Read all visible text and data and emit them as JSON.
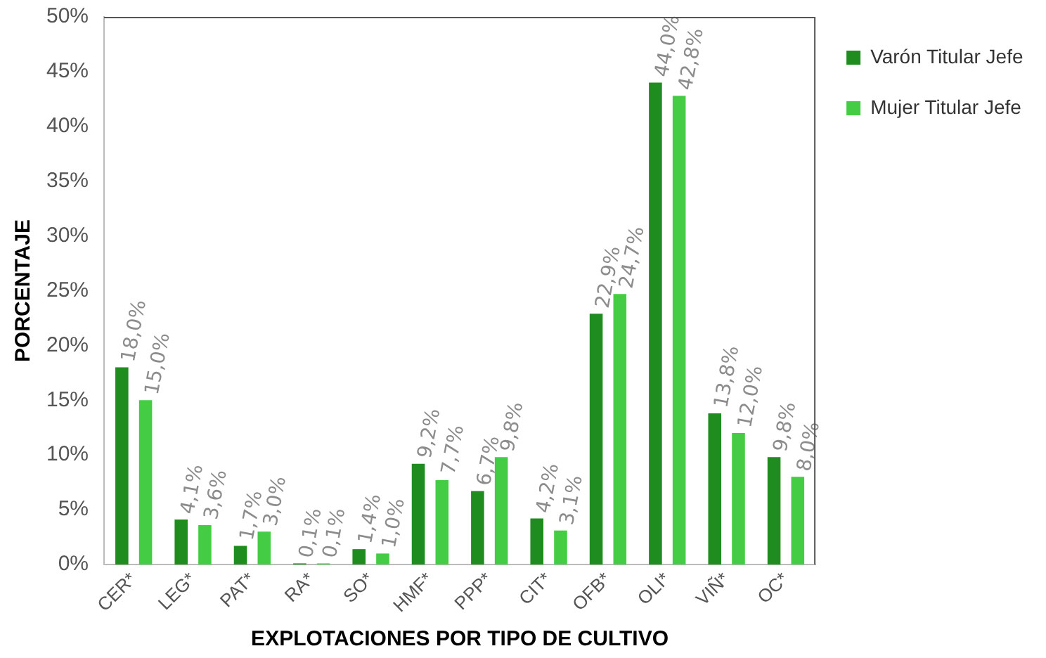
{
  "chart_data": {
    "type": "bar",
    "xlabel": "EXPLOTACIONES POR TIPO DE CULTIVO",
    "ylabel": "PORCENTAJE",
    "categories": [
      "CER*",
      "LEG*",
      "PAT*",
      "RA*",
      "SO*",
      "HMF*",
      "PPP*",
      "CIT*",
      "OFB*",
      "OLI*",
      "VIÑ*",
      "OC*"
    ],
    "series": [
      {
        "name": "Varón Titular Jefe",
        "color": "#1e8c1e",
        "values": [
          18.0,
          4.1,
          1.7,
          0.1,
          1.4,
          9.2,
          6.7,
          4.2,
          22.9,
          44.0,
          13.8,
          9.8
        ],
        "value_labels": [
          "18,0%",
          "4,1%",
          "1,7%",
          "0,1%",
          "1,4%",
          "9,2%",
          "6,7%",
          "4,2%",
          "22,9%",
          "44,0%",
          "13,8%",
          "9,8%"
        ]
      },
      {
        "name": "Mujer Titular Jefe",
        "color": "#44cc44",
        "values": [
          15.0,
          3.6,
          3.0,
          0.1,
          1.0,
          7.7,
          9.8,
          3.1,
          24.7,
          42.8,
          12.0,
          8.0
        ],
        "value_labels": [
          "15,0%",
          "3,6%",
          "3,0%",
          "0,1%",
          "1,0%",
          "7,7%",
          "9,8%",
          "3,1%",
          "24,7%",
          "42,8%",
          "12,0%",
          "8,0%"
        ]
      }
    ],
    "ylim": [
      0,
      50
    ],
    "yticks": [
      {
        "value": 0,
        "label": "0%"
      },
      {
        "value": 5,
        "label": "5%"
      },
      {
        "value": 10,
        "label": "10%"
      },
      {
        "value": 15,
        "label": "15%"
      },
      {
        "value": 20,
        "label": "20%"
      },
      {
        "value": 25,
        "label": "25%"
      },
      {
        "value": 30,
        "label": "30%"
      },
      {
        "value": 35,
        "label": "35%"
      },
      {
        "value": 40,
        "label": "40%"
      },
      {
        "value": 45,
        "label": "45%"
      },
      {
        "value": 50,
        "label": "50%"
      }
    ],
    "grid": false,
    "legend": "right"
  }
}
